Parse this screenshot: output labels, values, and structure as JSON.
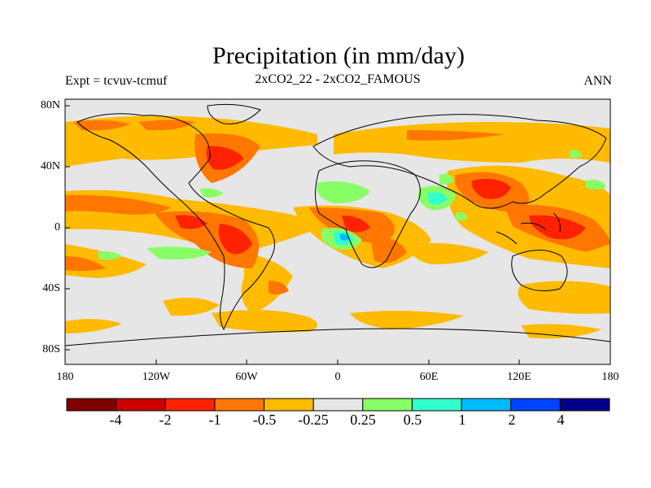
{
  "title": "Precipitation (in mm/day)",
  "left_label": "Expt = tcvuv-tcmuf",
  "center_label": "2xCO2_22 - 2xCO2_FAMOUS",
  "right_label": "ANN",
  "lat_ticks": [
    "80N",
    "40N",
    "0",
    "40S",
    "80S"
  ],
  "lon_ticks": [
    "180",
    "120W",
    "60W",
    "0",
    "60E",
    "120E",
    "180"
  ],
  "colorbar": {
    "colors": [
      "#800000",
      "#cc0000",
      "#ff2200",
      "#ff7700",
      "#ffbb00",
      "#e6e6e6",
      "#88ff66",
      "#33ffcc",
      "#00bbff",
      "#0044ff",
      "#000088"
    ],
    "labels": [
      "-4",
      "-2",
      "-1",
      "-0.5",
      "-0.25",
      "0.25",
      "0.5",
      "1",
      "2",
      "4"
    ]
  },
  "map_colors": {
    "background": "#e6e6e6",
    "coast": "#000000"
  }
}
